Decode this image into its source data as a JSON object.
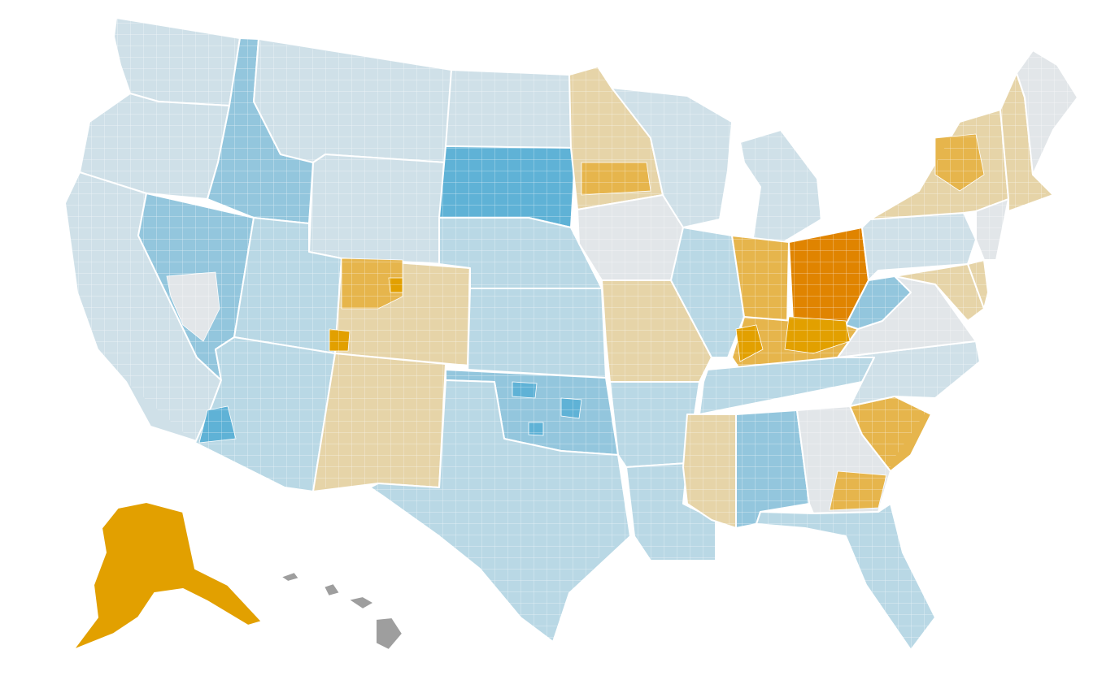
{
  "map": {
    "palette": {
      "blue_dark": "#5fb2d6",
      "blue_mid": "#93c6dd",
      "blue_light": "#b9d8e5",
      "blue_pale": "#cfe0e8",
      "neutral": "#e2e6e9",
      "tan_light": "#e6d4a8",
      "gold_mid": "#e6b54c",
      "gold_dark": "#e2a000",
      "orange_dark": "#e08400",
      "no_data": "#9e9e9e"
    },
    "states": [
      {
        "name": "washington",
        "level": "blue_pale"
      },
      {
        "name": "oregon",
        "level": "blue_pale"
      },
      {
        "name": "california",
        "level": "blue_pale"
      },
      {
        "name": "nevada",
        "level": "blue_mid"
      },
      {
        "name": "idaho",
        "level": "blue_mid"
      },
      {
        "name": "montana",
        "level": "blue_pale"
      },
      {
        "name": "wyoming",
        "level": "blue_pale"
      },
      {
        "name": "utah",
        "level": "blue_light"
      },
      {
        "name": "arizona",
        "level": "blue_light"
      },
      {
        "name": "colorado",
        "level": "tan_light"
      },
      {
        "name": "new-mexico",
        "level": "tan_light"
      },
      {
        "name": "north-dakota",
        "level": "blue_pale"
      },
      {
        "name": "south-dakota",
        "level": "blue_dark"
      },
      {
        "name": "nebraska",
        "level": "blue_light"
      },
      {
        "name": "kansas",
        "level": "blue_light"
      },
      {
        "name": "oklahoma",
        "level": "blue_mid"
      },
      {
        "name": "texas",
        "level": "blue_light"
      },
      {
        "name": "minnesota",
        "level": "tan_light"
      },
      {
        "name": "iowa",
        "level": "neutral"
      },
      {
        "name": "missouri",
        "level": "tan_light"
      },
      {
        "name": "arkansas",
        "level": "blue_light"
      },
      {
        "name": "louisiana",
        "level": "blue_light"
      },
      {
        "name": "wisconsin",
        "level": "blue_pale"
      },
      {
        "name": "illinois",
        "level": "blue_light"
      },
      {
        "name": "michigan",
        "level": "blue_pale"
      },
      {
        "name": "indiana",
        "level": "gold_mid"
      },
      {
        "name": "ohio",
        "level": "orange_dark"
      },
      {
        "name": "kentucky",
        "level": "gold_mid"
      },
      {
        "name": "tennessee",
        "level": "blue_light"
      },
      {
        "name": "mississippi",
        "level": "tan_light"
      },
      {
        "name": "alabama",
        "level": "blue_mid"
      },
      {
        "name": "georgia",
        "level": "neutral"
      },
      {
        "name": "florida",
        "level": "blue_light"
      },
      {
        "name": "south-carolina",
        "level": "gold_mid"
      },
      {
        "name": "north-carolina",
        "level": "blue_pale"
      },
      {
        "name": "virginia",
        "level": "neutral"
      },
      {
        "name": "west-virginia",
        "level": "blue_mid"
      },
      {
        "name": "pennsylvania",
        "level": "blue_pale"
      },
      {
        "name": "new-york",
        "level": "tan_light"
      },
      {
        "name": "maryland",
        "level": "tan_light"
      },
      {
        "name": "delaware",
        "level": "tan_light"
      },
      {
        "name": "new-jersey",
        "level": "neutral"
      },
      {
        "name": "new-england",
        "level": "tan_light"
      },
      {
        "name": "maine",
        "level": "neutral"
      },
      {
        "name": "alaska",
        "level": "gold_dark"
      },
      {
        "name": "hawaii",
        "level": "no_data"
      }
    ],
    "highlights": [
      {
        "name": "colorado-northeast",
        "level": "gold_mid"
      },
      {
        "name": "colorado-county-dark",
        "level": "gold_dark"
      },
      {
        "name": "kentucky-east",
        "level": "gold_dark"
      },
      {
        "name": "indiana-north",
        "level": "gold_dark"
      },
      {
        "name": "georgia-southeast",
        "level": "gold_mid"
      },
      {
        "name": "minnesota-center",
        "level": "gold_mid"
      },
      {
        "name": "new-york-center",
        "level": "gold_mid"
      },
      {
        "name": "oklahoma-counties",
        "level": "blue_dark"
      },
      {
        "name": "arizona-southwest",
        "level": "blue_dark"
      },
      {
        "name": "nevada-south",
        "level": "neutral"
      }
    ]
  }
}
